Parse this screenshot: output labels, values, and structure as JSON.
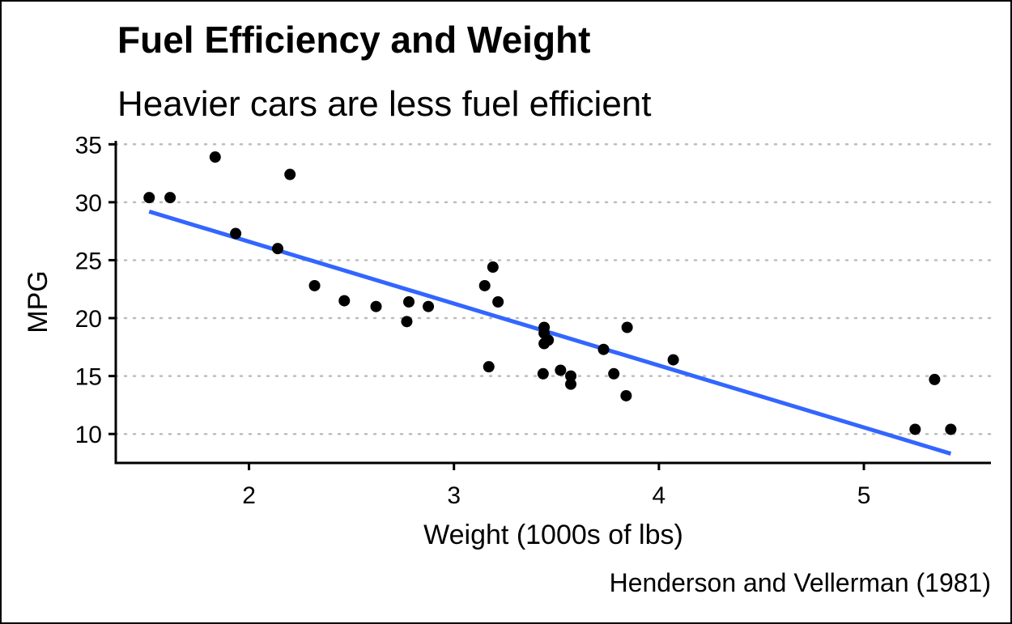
{
  "chart_data": {
    "type": "scatter",
    "title": "Fuel Efficiency and Weight",
    "subtitle": "Heavier cars are less fuel efficient",
    "caption": "Henderson and Vellerman (1981)",
    "xlabel": "Weight (1000s of lbs)",
    "ylabel": "MPG",
    "xlim": [
      1.35,
      5.62
    ],
    "ylim": [
      7.5,
      35.3
    ],
    "x_ticks": [
      2,
      3,
      4,
      5
    ],
    "y_ticks": [
      10,
      15,
      20,
      25,
      30,
      35
    ],
    "grid": "horizontal dotted",
    "points": [
      {
        "x": 1.513,
        "y": 30.4
      },
      {
        "x": 1.615,
        "y": 30.4
      },
      {
        "x": 1.835,
        "y": 33.9
      },
      {
        "x": 1.935,
        "y": 27.3
      },
      {
        "x": 2.14,
        "y": 26.0
      },
      {
        "x": 2.2,
        "y": 32.4
      },
      {
        "x": 2.32,
        "y": 22.8
      },
      {
        "x": 2.465,
        "y": 21.5
      },
      {
        "x": 2.62,
        "y": 21.0
      },
      {
        "x": 2.77,
        "y": 19.7
      },
      {
        "x": 2.78,
        "y": 21.4
      },
      {
        "x": 2.875,
        "y": 21.0
      },
      {
        "x": 3.15,
        "y": 22.8
      },
      {
        "x": 3.17,
        "y": 15.8
      },
      {
        "x": 3.19,
        "y": 24.4
      },
      {
        "x": 3.215,
        "y": 21.4
      },
      {
        "x": 3.435,
        "y": 15.2
      },
      {
        "x": 3.44,
        "y": 18.7
      },
      {
        "x": 3.44,
        "y": 19.2
      },
      {
        "x": 3.44,
        "y": 17.8
      },
      {
        "x": 3.46,
        "y": 18.1
      },
      {
        "x": 3.52,
        "y": 15.5
      },
      {
        "x": 3.57,
        "y": 14.3
      },
      {
        "x": 3.57,
        "y": 15.0
      },
      {
        "x": 3.73,
        "y": 17.3
      },
      {
        "x": 3.78,
        "y": 15.2
      },
      {
        "x": 3.84,
        "y": 13.3
      },
      {
        "x": 3.845,
        "y": 19.2
      },
      {
        "x": 4.07,
        "y": 16.4
      },
      {
        "x": 5.25,
        "y": 10.4
      },
      {
        "x": 5.345,
        "y": 14.7
      },
      {
        "x": 5.424,
        "y": 10.4
      }
    ],
    "fit_line": {
      "x": [
        1.513,
        5.424
      ],
      "y": [
        29.2,
        8.3
      ],
      "color": "#3366FF"
    },
    "point_color": "#000000"
  }
}
